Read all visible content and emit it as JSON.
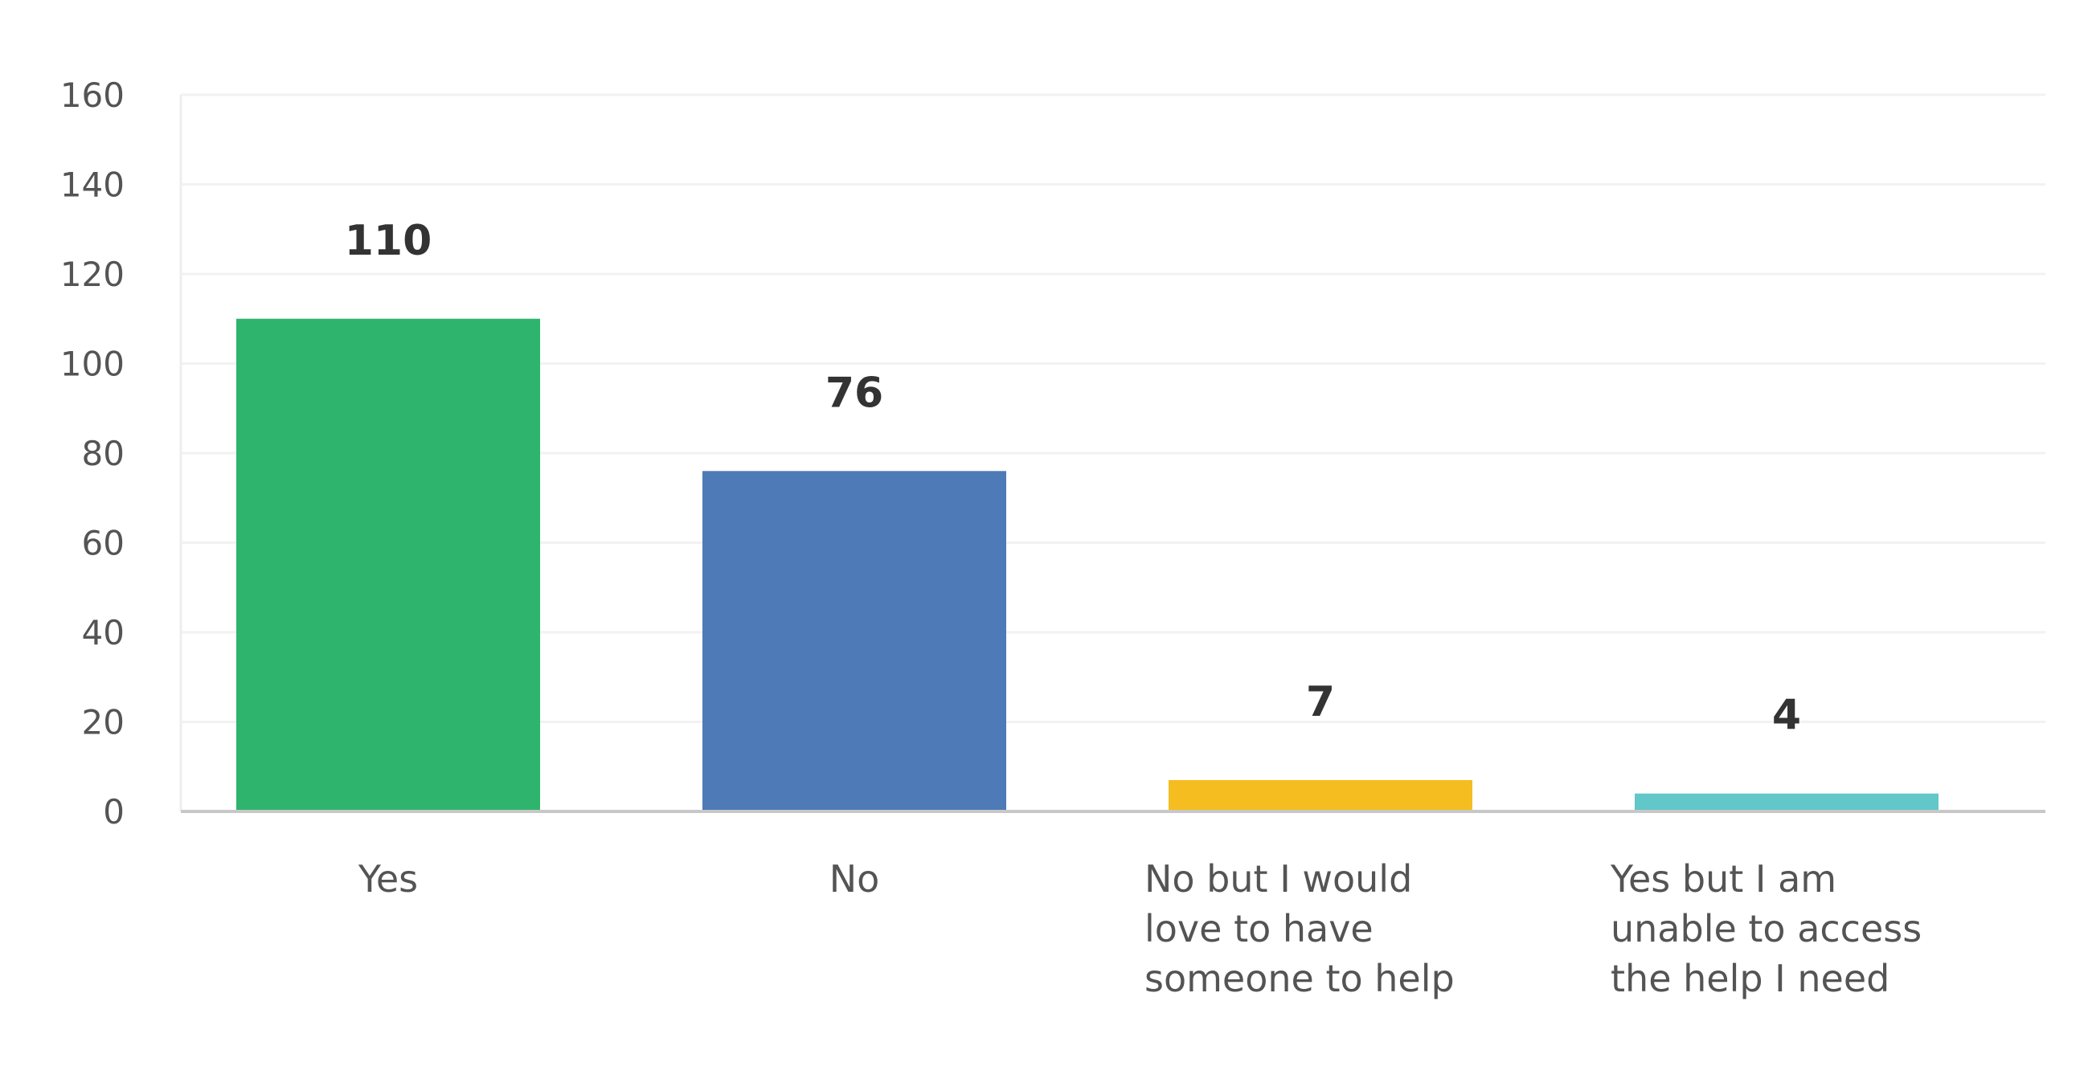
{
  "chart_data": {
    "type": "bar",
    "categories": [
      [
        "Yes"
      ],
      [
        "No"
      ],
      [
        "No but I would",
        "love to have",
        "someone to help"
      ],
      [
        "Yes but I am",
        "unable to access",
        "the help I need"
      ]
    ],
    "values": [
      110,
      76,
      7,
      4
    ],
    "data_labels": [
      "110",
      "76",
      "7",
      "4"
    ],
    "colors": [
      "#2eb46c",
      "#4e7ab7",
      "#f5bd1f",
      "#62c7c8"
    ],
    "ylim": [
      0,
      160
    ],
    "yticks": [
      0,
      20,
      40,
      60,
      80,
      100,
      120,
      140,
      160
    ],
    "ytick_labels": [
      "0",
      "20",
      "40",
      "60",
      "80",
      "100",
      "120",
      "140",
      "160"
    ],
    "grid": true,
    "title": "",
    "xlabel": "",
    "ylabel": ""
  }
}
